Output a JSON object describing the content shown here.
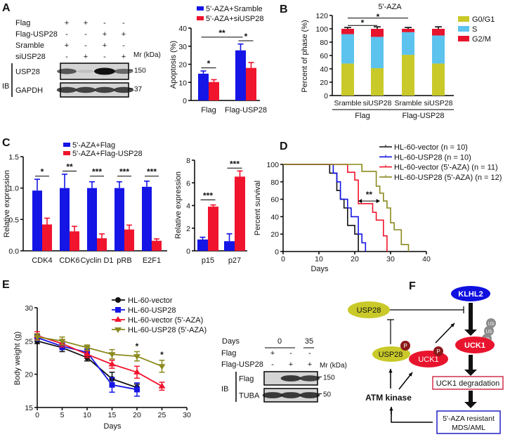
{
  "panel_labels": [
    "A",
    "B",
    "C",
    "D",
    "E",
    "F"
  ],
  "panel_a_blot": {
    "row_labels": [
      "Flag",
      "Flag-USP28",
      "Sramble",
      "siUSP28"
    ],
    "signs": [
      [
        "+",
        "+",
        "-",
        "-"
      ],
      [
        "-",
        "-",
        "+",
        "+"
      ],
      [
        "+",
        "-",
        "+",
        "-"
      ],
      [
        "-",
        "+",
        "-",
        "+"
      ]
    ],
    "mr_label": "Mr (kDa)",
    "ib_label": "IB",
    "blots": [
      {
        "label": "USP28",
        "marker": "150",
        "band_intensity": [
          0.65,
          0.1,
          1.0,
          0.55
        ]
      },
      {
        "label": "GAPDH",
        "marker": "37",
        "band_intensity": [
          0.75,
          0.75,
          0.75,
          0.75
        ]
      }
    ]
  },
  "panel_e_blot": {
    "days_label": "Days",
    "day_values": [
      "0",
      "35"
    ],
    "row_labels": [
      "Flag",
      "Flag-USP28"
    ],
    "signs": [
      [
        "+",
        "-",
        "-"
      ],
      [
        "-",
        "+",
        "+"
      ]
    ],
    "mr_label": "Mr (kDa)",
    "ib_label": "IB",
    "blots": [
      {
        "label": "Flag",
        "marker": "150",
        "band_intensity": [
          0.0,
          0.8,
          0.75
        ]
      },
      {
        "label": "TUBA",
        "marker": "50",
        "band_intensity": [
          0.8,
          0.8,
          0.8
        ]
      }
    ]
  },
  "chart_data": [
    {
      "panel": "A",
      "type": "bar",
      "categories": [
        "Flag",
        "Flag-USP28"
      ],
      "series": [
        {
          "name": "5'-AZA+Sramble",
          "values": [
            14.8,
            27.7
          ],
          "errors": [
            1.5,
            3.5
          ],
          "color": "#1515e6"
        },
        {
          "name": "5'-AZA+siUSP28",
          "values": [
            10.2,
            18.0
          ],
          "errors": [
            1.3,
            3.0
          ],
          "color": "#f0142d"
        }
      ],
      "ylabel": "Apoptosis (%)",
      "ylim": [
        0,
        40
      ],
      "yticks": [
        "0",
        "10",
        "20",
        "30",
        "40"
      ],
      "legend": "top",
      "significance": [
        {
          "from": [
            0,
            0
          ],
          "to": [
            0,
            1
          ],
          "y": 18,
          "label": "*"
        },
        {
          "from": [
            0,
            0
          ],
          "to": [
            1,
            0
          ],
          "y": 35,
          "label": "**"
        },
        {
          "from": [
            1,
            0
          ],
          "to": [
            1,
            1
          ],
          "y": 33,
          "label": "*"
        }
      ]
    },
    {
      "panel": "B",
      "type": "bar",
      "stacked": true,
      "title": "5'-AZA",
      "categories": [
        "Sramble",
        "siUSP28",
        "Sramble",
        "siUSP28"
      ],
      "groups": [
        {
          "label": "Flag",
          "members": [
            0,
            1
          ]
        },
        {
          "label": "Flag-USP28",
          "members": [
            2,
            3
          ]
        }
      ],
      "series": [
        {
          "name": "G0/G1",
          "values": [
            48,
            41,
            61,
            48
          ],
          "errors": [
            4,
            4,
            3,
            5
          ],
          "color": "#c9c92a"
        },
        {
          "name": "S",
          "values": [
            44,
            47,
            34,
            42
          ],
          "errors": [
            2,
            1,
            1,
            2
          ],
          "color": "#5cc3ee"
        },
        {
          "name": "G2/M",
          "values": [
            8,
            12,
            5,
            10
          ],
          "errors": [
            2,
            3,
            2,
            3
          ],
          "color": "#e8142d"
        }
      ],
      "ylabel": "Percent of phase (%)",
      "ylim": [
        0,
        120
      ],
      "yticks": [
        "0",
        "20",
        "40",
        "60",
        "80",
        "100",
        "120"
      ],
      "legend": "right",
      "significance": [
        {
          "from": 0,
          "to": 1,
          "y": 105,
          "label": "*"
        },
        {
          "from": 0,
          "to": 2,
          "y": 116,
          "label": "*"
        }
      ]
    },
    {
      "panel": "C-left",
      "type": "bar",
      "categories": [
        "CDK4",
        "CDK6",
        "Cyclin D1",
        "pRB",
        "E2F1"
      ],
      "series": [
        {
          "name": "5'-AZA+Flag",
          "values": [
            0.96,
            1.0,
            1.0,
            1.0,
            1.02
          ],
          "errors": [
            0.18,
            0.22,
            0.1,
            0.1,
            0.09
          ],
          "color": "#1515e6"
        },
        {
          "name": "5'-AZA+Flag-USP28",
          "values": [
            0.42,
            0.31,
            0.2,
            0.34,
            0.16
          ],
          "errors": [
            0.1,
            0.08,
            0.07,
            0.07,
            0.03
          ],
          "color": "#f0142d"
        }
      ],
      "ylabel": "Relative expression",
      "ylim": [
        0,
        1.5
      ],
      "yticks": [
        "0.0",
        "0.5",
        "1.0",
        "1.5"
      ],
      "legend": "top",
      "significance": [
        {
          "from": [
            0,
            0
          ],
          "to": [
            0,
            1
          ],
          "y": 1.19,
          "label": "*"
        },
        {
          "from": [
            1,
            0
          ],
          "to": [
            1,
            1
          ],
          "y": 1.27,
          "label": "**"
        },
        {
          "from": [
            2,
            0
          ],
          "to": [
            2,
            1
          ],
          "y": 1.19,
          "label": "***"
        },
        {
          "from": [
            3,
            0
          ],
          "to": [
            3,
            1
          ],
          "y": 1.19,
          "label": "***"
        },
        {
          "from": [
            4,
            0
          ],
          "to": [
            4,
            1
          ],
          "y": 1.19,
          "label": "***"
        }
      ]
    },
    {
      "panel": "C-right",
      "type": "bar",
      "categories": [
        "p15",
        "p27"
      ],
      "series": [
        {
          "name": "5'-AZA+Flag",
          "values": [
            1.0,
            0.85
          ],
          "errors": [
            0.2,
            0.65
          ],
          "color": "#1515e6"
        },
        {
          "name": "5'-AZA+Flag-USP28",
          "values": [
            3.9,
            6.55
          ],
          "errors": [
            0.15,
            0.5
          ],
          "color": "#f0142d"
        }
      ],
      "ylabel": "Relative expression",
      "ylim": [
        0,
        8
      ],
      "yticks": [
        "0",
        "2",
        "4",
        "6",
        "8"
      ],
      "significance": [
        {
          "from": [
            0,
            0
          ],
          "to": [
            0,
            1
          ],
          "y": 4.5,
          "label": "***"
        },
        {
          "from": [
            1,
            0
          ],
          "to": [
            1,
            1
          ],
          "y": 7.3,
          "label": "***"
        }
      ]
    },
    {
      "panel": "D",
      "type": "line",
      "subtype": "kaplan-meier",
      "xlabel": "Days",
      "ylabel": "Percent survival",
      "xlim": [
        0,
        40
      ],
      "ylim": [
        0,
        100
      ],
      "xticks": [
        "0",
        "10",
        "20",
        "30",
        "40"
      ],
      "yticks": [
        "0",
        "20",
        "40",
        "60",
        "80",
        "100"
      ],
      "legend": "top-right",
      "series": [
        {
          "name": "HL-60-vector (n = 10)",
          "color": "#111111",
          "steps": [
            [
              0,
              100
            ],
            [
              13,
              90
            ],
            [
              15,
              70
            ],
            [
              16,
              60
            ],
            [
              17,
              50
            ],
            [
              18,
              30
            ],
            [
              20,
              20
            ],
            [
              21,
              0
            ]
          ]
        },
        {
          "name": "HL-60-USP28 (n = 10)",
          "color": "#1515e6",
          "steps": [
            [
              0,
              100
            ],
            [
              14,
              90
            ],
            [
              15,
              80
            ],
            [
              16,
              60
            ],
            [
              18,
              50
            ],
            [
              19,
              40
            ],
            [
              21,
              20
            ],
            [
              22,
              10
            ],
            [
              23,
              0
            ]
          ]
        },
        {
          "name": "HL-60-vector (5'-AZA) (n = 11)",
          "color": "#f0142d",
          "steps": [
            [
              0,
              100
            ],
            [
              18,
              91
            ],
            [
              20,
              82
            ],
            [
              21,
              55
            ],
            [
              25,
              45
            ],
            [
              26,
              36
            ],
            [
              28,
              18
            ],
            [
              29,
              0
            ]
          ]
        },
        {
          "name": "HL-60-USP28 (5'-AZA) (n = 12)",
          "color": "#8a8a1e",
          "steps": [
            [
              0,
              100
            ],
            [
              22,
              92
            ],
            [
              26,
              75
            ],
            [
              27,
              67
            ],
            [
              28,
              58
            ],
            [
              29,
              50
            ],
            [
              30,
              33
            ],
            [
              31,
              25
            ],
            [
              33,
              8
            ],
            [
              35,
              0
            ]
          ]
        }
      ],
      "annotations": [
        {
          "label": "**",
          "x_from": 21,
          "x_to": 27,
          "y": 58
        }
      ]
    },
    {
      "panel": "E",
      "type": "line",
      "xlabel": "Days",
      "ylabel": "Body weight (g)",
      "xlim": [
        0,
        30
      ],
      "ylim": [
        15,
        30
      ],
      "xticks": [
        "0",
        "5",
        "10",
        "15",
        "20",
        "25",
        "30"
      ],
      "yticks": [
        "15",
        "20",
        "25",
        "30"
      ],
      "legend": "top-right",
      "series": [
        {
          "name": "HL-60-vector",
          "marker": "circle",
          "color": "#111111",
          "x": [
            0,
            5,
            10,
            15,
            20
          ],
          "y": [
            25.0,
            24.0,
            22.5,
            19.3,
            18.0
          ],
          "errors": [
            0.4,
            0.6,
            0.5,
            1.0,
            0.5
          ]
        },
        {
          "name": "HL-60-USP28",
          "marker": "square",
          "color": "#1515e6",
          "x": [
            0,
            5,
            10,
            15,
            20
          ],
          "y": [
            25.5,
            24.2,
            23.3,
            18.4,
            17.7
          ],
          "errors": [
            0.5,
            0.5,
            0.5,
            1.1,
            1.0
          ]
        },
        {
          "name": "HL-60-vector (5'-AZA)",
          "marker": "triangle-up",
          "color": "#f0142d",
          "x": [
            0,
            5,
            10,
            15,
            20,
            25
          ],
          "y": [
            25.8,
            24.6,
            23.0,
            21.5,
            20.3,
            18.2
          ],
          "errors": [
            0.6,
            0.5,
            0.5,
            0.6,
            0.9,
            0.6
          ]
        },
        {
          "name": "HL-60-USP28 (5'-AZA)",
          "marker": "triangle-down",
          "color": "#8a8a1e",
          "x": [
            0,
            5,
            10,
            15,
            20,
            25
          ],
          "y": [
            25.6,
            25.0,
            24.0,
            23.0,
            22.7,
            21.2
          ],
          "errors": [
            0.5,
            0.6,
            0.4,
            0.7,
            0.7,
            0.9
          ]
        }
      ],
      "annotations": [
        {
          "label": "*",
          "x": 20,
          "y": 24.2
        },
        {
          "label": "*",
          "x": 25,
          "y": 22.9
        }
      ]
    }
  ],
  "diagram": {
    "klhl2": "KLHL2",
    "usp28_top": "USP28",
    "usp28_p": "USP28",
    "uck1_p": "UCK1",
    "uck1": "UCK1",
    "p": "P",
    "ub": "Ub",
    "degradation": "UCK1 degradation",
    "resistant_line1": "5'-AZA resistant",
    "resistant_line2": "MDS/AML",
    "atm": "ATM kinase",
    "colors": {
      "klhl2": "#1010e0",
      "usp28": "#c9c92a",
      "uck1": "#e8142d",
      "phospho": "#8b1a1a",
      "ub": "#8c8c8c",
      "degradation_border": "#d0304a",
      "resistant_border": "#2020c0"
    }
  }
}
